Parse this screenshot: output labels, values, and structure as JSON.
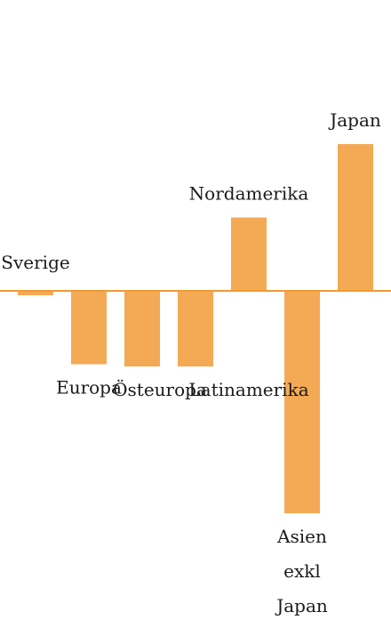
{
  "chart_data": {
    "type": "bar",
    "title": "",
    "xlabel": "",
    "ylabel": "",
    "categories": [
      "Sverige",
      "Europa",
      "Östeuropa",
      "Latinamerika",
      "Nordamerika",
      "Asien exkl Japan",
      "Japan"
    ],
    "label_lines": [
      [
        "Sverige"
      ],
      [
        "Europa"
      ],
      [
        "Östeuropa"
      ],
      [
        "Latinamerika"
      ],
      [
        "Nordamerika"
      ],
      [
        "Asien",
        "exkl",
        "Japan"
      ],
      [
        "Japan"
      ]
    ],
    "values": [
      -0.2,
      -3.3,
      -3.4,
      -3.4,
      3.3,
      -10,
      6.6
    ],
    "ylim": [
      -10.5,
      6.6
    ],
    "grid": false,
    "colors": {
      "bar": "#f4a955",
      "baseline": "#f29a33",
      "text": "#1a1a1a"
    }
  }
}
